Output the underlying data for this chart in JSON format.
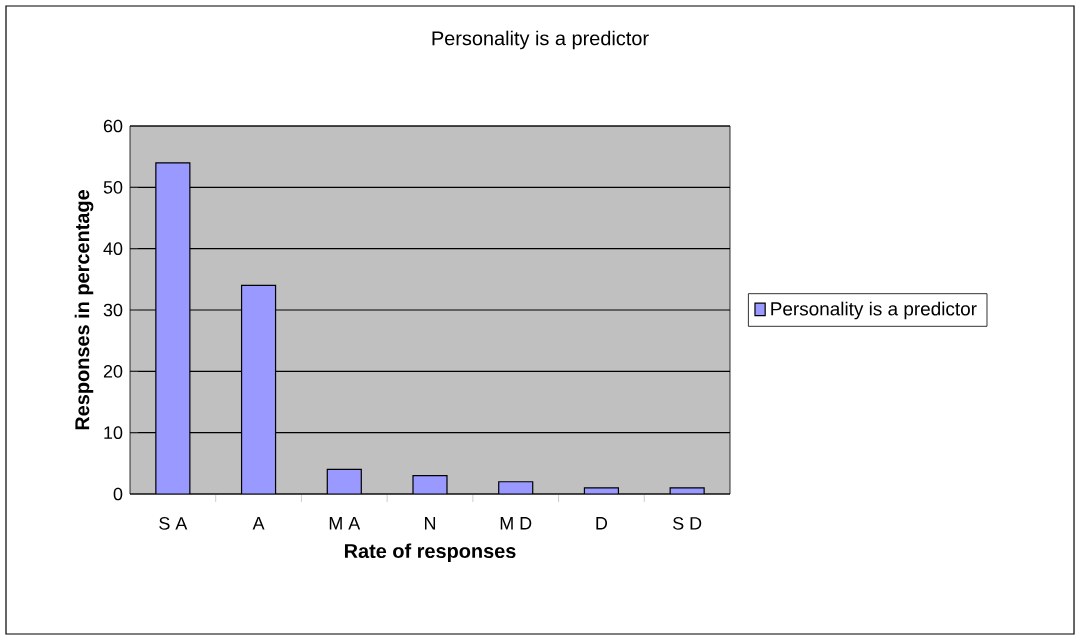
{
  "chart_data": {
    "type": "bar",
    "title": "Personality is a predictor",
    "xlabel": "Rate of responses",
    "ylabel": "Responses in percentage",
    "categories": [
      "S A",
      "A",
      "M A",
      "N",
      "M D",
      "D",
      "S D"
    ],
    "series": [
      {
        "name": "Personality is a predictor",
        "color": "#9999ff",
        "values": [
          54,
          34,
          4,
          3,
          2,
          1,
          1
        ]
      }
    ],
    "ylim": [
      0,
      60
    ],
    "yticks": [
      0,
      10,
      20,
      30,
      40,
      50,
      60
    ],
    "grid": "y",
    "legend": "right"
  }
}
